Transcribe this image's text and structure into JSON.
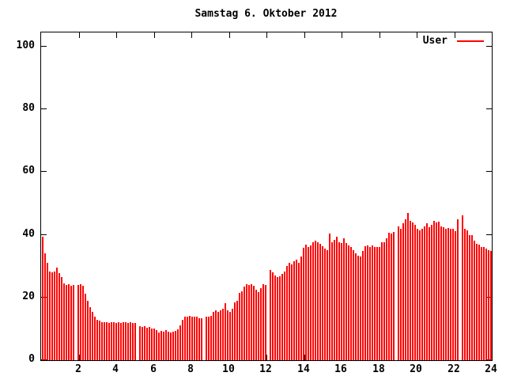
{
  "chart_data": {
    "type": "bar",
    "title": "Samstag 6. Oktober 2012",
    "xlabel": "",
    "ylabel": "",
    "x_unit": "hour of day",
    "xlim": [
      0,
      24
    ],
    "ylim": [
      0,
      104
    ],
    "x_ticks": [
      2,
      4,
      6,
      8,
      10,
      12,
      14,
      16,
      18,
      20,
      22,
      24
    ],
    "y_ticks": [
      0,
      20,
      40,
      60,
      80,
      100
    ],
    "grid": false,
    "legend_position": "top-right-inside",
    "legend": [
      {
        "name": "User",
        "color": "#ff0000"
      }
    ],
    "bar_color": "#ff0000",
    "axis_color": "#000000",
    "background_color": "#ffffff",
    "n_bars": 190,
    "sample_interval_hours": 0.1263,
    "note_gaps": "null entries are missing samples (white gaps) near hours 1.8, 5.1, 8.6, 12.0, 18.9, 22.3",
    "values": [
      39.3,
      34.2,
      31,
      28.4,
      28,
      28.2,
      29.5,
      27.8,
      26.5,
      24.5,
      24,
      24.2,
      23.8,
      24,
      null,
      24,
      24.2,
      23.8,
      21.2,
      19,
      17,
      15.5,
      14,
      13,
      12.5,
      12.2,
      12,
      12,
      11.8,
      12,
      12,
      11.8,
      12,
      11.8,
      12,
      12,
      11.8,
      12,
      11.8,
      11.8,
      null,
      10.8,
      10.5,
      10.8,
      10.3,
      10.5,
      10,
      10.2,
      9.5,
      8.8,
      9.3,
      9,
      9.5,
      9.2,
      8.8,
      9,
      9.3,
      9.8,
      11,
      12.8,
      13.8,
      14,
      14.2,
      14,
      14,
      13.8,
      13.5,
      13.3,
      null,
      13.8,
      14,
      14.2,
      15.3,
      15.8,
      15.5,
      16,
      16.3,
      18.3,
      16,
      15.5,
      16.5,
      18.5,
      19,
      21.5,
      22,
      23.5,
      24.2,
      24,
      24.2,
      23.8,
      22.5,
      21.8,
      23,
      24.2,
      24,
      null,
      28.8,
      28,
      27,
      26.5,
      26.8,
      27.5,
      28.4,
      30,
      31,
      30.5,
      31.5,
      32,
      31,
      33,
      35.9,
      36.8,
      36,
      36.5,
      37.6,
      38.1,
      37.6,
      37,
      36.4,
      35.5,
      35.2,
      40.3,
      37.5,
      38.5,
      39.3,
      37.6,
      37.4,
      38.8,
      37.3,
      36.5,
      36,
      35.2,
      34,
      33.4,
      33,
      34.8,
      36.3,
      36.5,
      36.2,
      36.5,
      36,
      36.2,
      36,
      37.7,
      37.5,
      39,
      40.7,
      40.3,
      41,
      null,
      42.8,
      42,
      43.6,
      44.9,
      47,
      44.5,
      44,
      43.2,
      42,
      41.5,
      42,
      42.8,
      43.6,
      42.5,
      43.2,
      44.5,
      44,
      44.3,
      42.8,
      42.4,
      42,
      42.2,
      41.8,
      42,
      41.2,
      44.9,
      null,
      46.3,
      42,
      41.5,
      40,
      39.9,
      38.2,
      37,
      36.9,
      36,
      36.2,
      35.5,
      35.2,
      34.8
    ]
  }
}
